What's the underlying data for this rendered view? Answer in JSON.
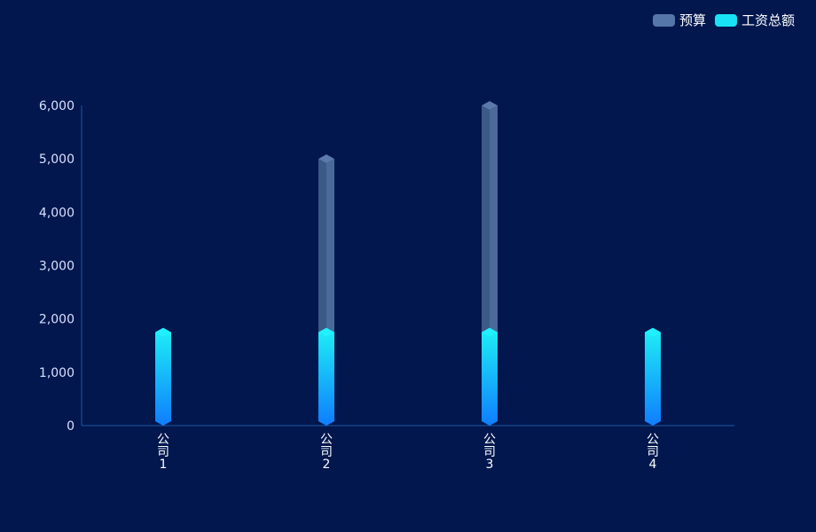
{
  "colors": {
    "background": "#01174e",
    "axis": "#1d5aa3",
    "tick_text": "#d6e2ff",
    "category_text": "#ffffff",
    "budget_main": "#3c5a87",
    "budget_side": "#4a6a99",
    "budget_top": "#5b7aab",
    "salary_top": "#20f0ff",
    "salary_grad_top": "#1ef1f5",
    "salary_grad_bottom": "#0f7dff"
  },
  "legend": {
    "items": [
      {
        "label": "预算",
        "color": "#5576a8"
      },
      {
        "label": "工资总额",
        "color": "#18e3f5"
      }
    ]
  },
  "chart_data": {
    "type": "bar",
    "categories": [
      "公司1",
      "公司2",
      "公司3",
      "公司4"
    ],
    "category_labels": [
      [
        "公",
        "司",
        "1"
      ],
      [
        "公",
        "司",
        "2"
      ],
      [
        "公",
        "司",
        "3"
      ],
      [
        "公",
        "司",
        "4"
      ]
    ],
    "series": [
      {
        "name": "预算",
        "values": [
          0,
          5000,
          6000,
          0
        ]
      },
      {
        "name": "工资总额",
        "values": [
          1750,
          1750,
          1750,
          1750
        ]
      }
    ],
    "ylim": [
      0,
      6000
    ],
    "yticks": [
      0,
      1000,
      2000,
      3000,
      4000,
      5000,
      6000
    ],
    "ytick_labels": [
      "0",
      "1,000",
      "2,000",
      "3,000",
      "4,000",
      "5,000",
      "6,000"
    ],
    "title": "",
    "xlabel": "",
    "ylabel": "",
    "grid": false,
    "legend_position": "top-right"
  }
}
